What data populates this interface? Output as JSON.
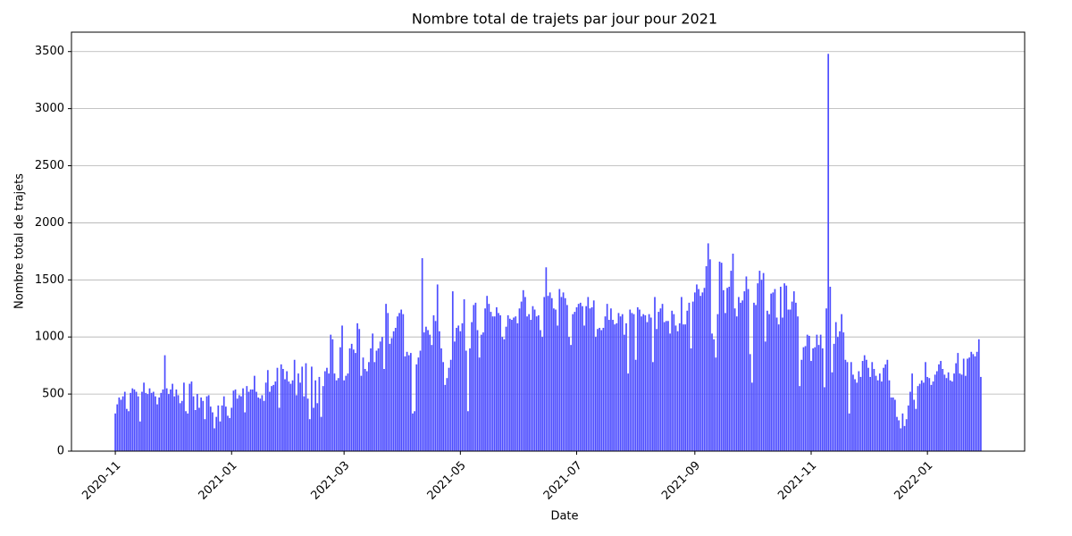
{
  "chart_data": {
    "type": "bar",
    "title": "Nombre total de trajets par jour pour 2021",
    "x_label": "Date",
    "y_label": "Nombre total de trajets",
    "color": "#4c4cff",
    "grid": true,
    "ylim": [
      0,
      3670
    ],
    "yticks": [
      0,
      500,
      1000,
      1500,
      2000,
      2500,
      3000,
      3500
    ],
    "categories": [
      "2020-11",
      null,
      null,
      null,
      null,
      null,
      null,
      null,
      null,
      null,
      null,
      null,
      null,
      null,
      null,
      null,
      null,
      null,
      null,
      null,
      null,
      null,
      null,
      null,
      null,
      null,
      null,
      null,
      null,
      null,
      null,
      null,
      null,
      null,
      null,
      null,
      null,
      null,
      null,
      null,
      null,
      null,
      null,
      null,
      null,
      null,
      null,
      null,
      null,
      null,
      null,
      null,
      null,
      null,
      null,
      null,
      null,
      null,
      null,
      null,
      null,
      "2021-01",
      null,
      null,
      null,
      null,
      null,
      null,
      null,
      null,
      null,
      null,
      null,
      null,
      null,
      null,
      null,
      null,
      null,
      null,
      null,
      null,
      null,
      null,
      null,
      null,
      null,
      null,
      null,
      null,
      null,
      null,
      null,
      null,
      null,
      null,
      null,
      null,
      null,
      null,
      null,
      null,
      null,
      null,
      null,
      null,
      null,
      null,
      null,
      null,
      null,
      null,
      null,
      null,
      null,
      null,
      null,
      null,
      null,
      null,
      "2021-03",
      null,
      null,
      null,
      null,
      null,
      null,
      null,
      null,
      null,
      null,
      null,
      null,
      null,
      null,
      null,
      null,
      null,
      null,
      null,
      null,
      null,
      null,
      null,
      null,
      null,
      null,
      null,
      null,
      null,
      null,
      null,
      null,
      null,
      null,
      null,
      null,
      null,
      null,
      null,
      null,
      null,
      null,
      null,
      null,
      null,
      null,
      null,
      null,
      null,
      null,
      null,
      null,
      null,
      null,
      null,
      null,
      null,
      null,
      null,
      null,
      "2021-05",
      null,
      null,
      null,
      null,
      null,
      null,
      null,
      null,
      null,
      null,
      null,
      null,
      null,
      null,
      null,
      null,
      null,
      null,
      null,
      null,
      null,
      null,
      null,
      null,
      null,
      null,
      null,
      null,
      null,
      null,
      null,
      null,
      null,
      null,
      null,
      null,
      null,
      null,
      null,
      null,
      null,
      null,
      null,
      null,
      null,
      null,
      null,
      null,
      null,
      null,
      null,
      null,
      null,
      null,
      null,
      null,
      null,
      null,
      null,
      null,
      "2021-07",
      null,
      null,
      null,
      null,
      null,
      null,
      null,
      null,
      null,
      null,
      null,
      null,
      null,
      null,
      null,
      null,
      null,
      null,
      null,
      null,
      null,
      null,
      null,
      null,
      null,
      null,
      null,
      null,
      null,
      null,
      null,
      null,
      null,
      null,
      null,
      null,
      null,
      null,
      null,
      null,
      null,
      null,
      null,
      null,
      null,
      null,
      null,
      null,
      null,
      null,
      null,
      null,
      null,
      null,
      null,
      null,
      null,
      null,
      null,
      null,
      null,
      "2021-09",
      null,
      null,
      null,
      null,
      null,
      null,
      null,
      null,
      null,
      null,
      null,
      null,
      null,
      null,
      null,
      null,
      null,
      null,
      null,
      null,
      null,
      null,
      null,
      null,
      null,
      null,
      null,
      null,
      null,
      null,
      null,
      null,
      null,
      null,
      null,
      null,
      null,
      null,
      null,
      null,
      null,
      null,
      null,
      null,
      null,
      null,
      null,
      null,
      null,
      null,
      null,
      null,
      null,
      null,
      null,
      null,
      null,
      null,
      null,
      null,
      "2021-11",
      null,
      null,
      null,
      null,
      null,
      null,
      null,
      null,
      null,
      null,
      null,
      null,
      null,
      null,
      null,
      null,
      null,
      null,
      null,
      null,
      null,
      null,
      null,
      null,
      null,
      null,
      null,
      null,
      null,
      null,
      null,
      null,
      null,
      null,
      null,
      null,
      null,
      null,
      null,
      null,
      null,
      null,
      null,
      null,
      null,
      null,
      null,
      null,
      null,
      null,
      null,
      null,
      null,
      null,
      null,
      null,
      null,
      null,
      null,
      null,
      "2022-01",
      null,
      null,
      null,
      null,
      null,
      null,
      null,
      null,
      null,
      null,
      null,
      null,
      null,
      null,
      null,
      null,
      null,
      null,
      null,
      null,
      null,
      null,
      null,
      null,
      null,
      null,
      null,
      null
    ],
    "values": [
      330,
      410,
      470,
      450,
      480,
      520,
      370,
      350,
      510,
      550,
      540,
      520,
      480,
      260,
      520,
      600,
      510,
      500,
      550,
      510,
      520,
      480,
      410,
      470,
      510,
      540,
      840,
      550,
      500,
      540,
      590,
      480,
      540,
      490,
      420,
      440,
      600,
      350,
      330,
      590,
      610,
      480,
      360,
      500,
      380,
      470,
      440,
      280,
      480,
      490,
      390,
      340,
      200,
      300,
      400,
      260,
      400,
      480,
      390,
      310,
      290,
      380,
      530,
      540,
      460,
      490,
      480,
      550,
      340,
      570,
      520,
      540,
      540,
      660,
      520,
      470,
      460,
      490,
      440,
      600,
      710,
      520,
      570,
      580,
      610,
      730,
      380,
      760,
      720,
      630,
      700,
      610,
      590,
      620,
      800,
      490,
      680,
      600,
      740,
      480,
      770,
      460,
      280,
      740,
      380,
      620,
      420,
      650,
      300,
      570,
      700,
      730,
      680,
      1020,
      980,
      680,
      620,
      640,
      910,
      1100,
      620,
      660,
      680,
      900,
      940,
      890,
      860,
      1120,
      1070,
      660,
      820,
      720,
      700,
      780,
      900,
      1030,
      780,
      880,
      900,
      960,
      1000,
      720,
      1290,
      1210,
      940,
      990,
      1050,
      1080,
      1180,
      1210,
      1240,
      1200,
      830,
      870,
      840,
      860,
      330,
      350,
      760,
      820,
      880,
      1690,
      1040,
      1090,
      1060,
      1020,
      930,
      1190,
      1140,
      1460,
      1050,
      900,
      780,
      580,
      640,
      730,
      800,
      1400,
      960,
      1080,
      1100,
      1050,
      1120,
      1330,
      880,
      350,
      900,
      1130,
      1280,
      1300,
      1060,
      820,
      1020,
      1040,
      1250,
      1360,
      1290,
      1220,
      1180,
      1180,
      1260,
      1210,
      1190,
      1000,
      980,
      1090,
      1190,
      1160,
      1150,
      1170,
      1180,
      1120,
      1250,
      1310,
      1410,
      1350,
      1180,
      1200,
      1150,
      1270,
      1240,
      1180,
      1190,
      1060,
      1000,
      1350,
      1610,
      1360,
      1390,
      1340,
      1250,
      1240,
      1100,
      1420,
      1350,
      1390,
      1340,
      1280,
      1000,
      930,
      1200,
      1220,
      1260,
      1290,
      1300,
      1270,
      1100,
      1270,
      1350,
      1250,
      1260,
      1320,
      1000,
      1070,
      1080,
      1060,
      1080,
      1180,
      1290,
      1150,
      1250,
      1150,
      1110,
      1120,
      1210,
      1180,
      1200,
      1020,
      1120,
      680,
      1240,
      1210,
      1200,
      800,
      1260,
      1240,
      1180,
      1200,
      1190,
      1130,
      1200,
      1170,
      780,
      1350,
      1070,
      1220,
      1250,
      1290,
      1130,
      1140,
      1140,
      1030,
      1230,
      1200,
      1100,
      1050,
      1120,
      1350,
      1110,
      1110,
      1230,
      1300,
      900,
      1310,
      1390,
      1460,
      1420,
      1360,
      1390,
      1430,
      1620,
      1820,
      1680,
      1030,
      980,
      820,
      1200,
      1660,
      1650,
      1410,
      1210,
      1430,
      1440,
      1580,
      1730,
      1250,
      1180,
      1350,
      1300,
      1320,
      1400,
      1530,
      1420,
      850,
      600,
      1300,
      1280,
      1470,
      1580,
      1500,
      1560,
      960,
      1230,
      1200,
      1380,
      1390,
      1420,
      1170,
      1110,
      1440,
      1170,
      1470,
      1450,
      1240,
      1240,
      1310,
      1400,
      1300,
      1180,
      570,
      800,
      910,
      920,
      1020,
      1010,
      790,
      900,
      910,
      1020,
      930,
      1020,
      900,
      560,
      1250,
      3480,
      1440,
      690,
      940,
      1130,
      1000,
      1050,
      1200,
      1040,
      800,
      780,
      330,
      780,
      670,
      630,
      600,
      700,
      650,
      790,
      840,
      800,
      730,
      650,
      780,
      720,
      660,
      620,
      680,
      610,
      730,
      760,
      800,
      620,
      470,
      470,
      450,
      300,
      270,
      200,
      330,
      220,
      280,
      400,
      520,
      680,
      450,
      370,
      570,
      590,
      620,
      600,
      780,
      650,
      640,
      580,
      610,
      670,
      700,
      760,
      790,
      720,
      670,
      640,
      690,
      620,
      610,
      680,
      770,
      860,
      680,
      670,
      810,
      660,
      810,
      820,
      870,
      850,
      830,
      870,
      980,
      650
    ]
  }
}
